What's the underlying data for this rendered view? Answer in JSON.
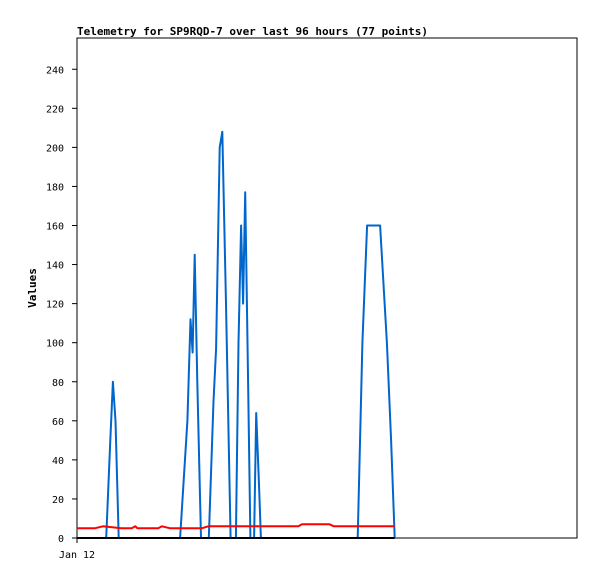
{
  "chart_data": {
    "type": "line",
    "title": "Telemetry for SP9RQD-7 over last 96 hours (77 points)",
    "ylabel": "Values",
    "xlabel": "",
    "ylim": [
      0,
      256
    ],
    "yticks": [
      0,
      20,
      40,
      60,
      80,
      100,
      120,
      140,
      160,
      180,
      200,
      220,
      240
    ],
    "xlim": [
      0,
      96
    ],
    "x_tick_labels": [
      {
        "x": 0,
        "label": "Jan 12"
      }
    ],
    "grid": false,
    "series": [
      {
        "color": "#0066cc",
        "points": [
          [
            0,
            0
          ],
          [
            5.6,
            0
          ],
          [
            6.4,
            50
          ],
          [
            6.9,
            80
          ],
          [
            7.4,
            60
          ],
          [
            8.0,
            0
          ],
          [
            19.8,
            0
          ],
          [
            21.2,
            60
          ],
          [
            21.8,
            112
          ],
          [
            22.2,
            95
          ],
          [
            22.6,
            145
          ],
          [
            23.1,
            80
          ],
          [
            23.8,
            0
          ],
          [
            25.3,
            0
          ],
          [
            26.2,
            70
          ],
          [
            26.7,
            97
          ],
          [
            27.4,
            200
          ],
          [
            27.9,
            208
          ],
          [
            28.6,
            120
          ],
          [
            29.5,
            0
          ],
          [
            30.5,
            0
          ],
          [
            31.0,
            100
          ],
          [
            31.5,
            160
          ],
          [
            31.9,
            120
          ],
          [
            32.3,
            177
          ],
          [
            32.8,
            90
          ],
          [
            33.3,
            0
          ],
          [
            34.0,
            0
          ],
          [
            34.4,
            64
          ],
          [
            34.9,
            30
          ],
          [
            35.3,
            0
          ],
          [
            53.9,
            0
          ],
          [
            54.8,
            100
          ],
          [
            55.7,
            160
          ],
          [
            58.2,
            160
          ],
          [
            59.5,
            100
          ],
          [
            60.3,
            50
          ],
          [
            61.0,
            0
          ]
        ]
      },
      {
        "color": "#ff0000",
        "points": [
          [
            0,
            5
          ],
          [
            3.5,
            5
          ],
          [
            5.0,
            6
          ],
          [
            8.5,
            5
          ],
          [
            10.5,
            5
          ],
          [
            11.2,
            6
          ],
          [
            11.6,
            5
          ],
          [
            15.6,
            5
          ],
          [
            16.3,
            6
          ],
          [
            17.8,
            5
          ],
          [
            24.0,
            5
          ],
          [
            25.2,
            6
          ],
          [
            42.5,
            6
          ],
          [
            43.2,
            7
          ],
          [
            48.5,
            7
          ],
          [
            49.3,
            6
          ],
          [
            61.0,
            6
          ]
        ]
      },
      {
        "color": "#000000",
        "points": [
          [
            0,
            0
          ],
          [
            61.0,
            0
          ]
        ]
      }
    ]
  }
}
